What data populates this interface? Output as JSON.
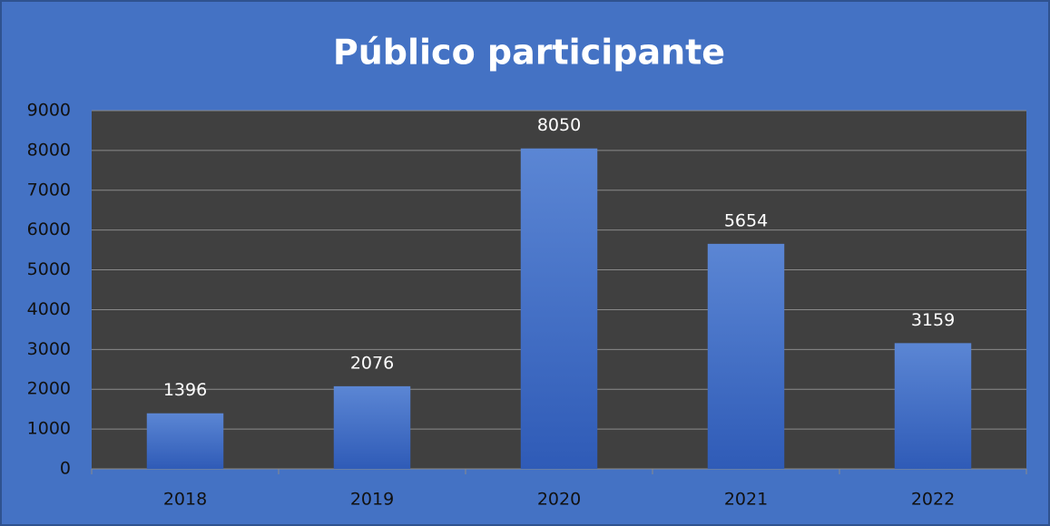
{
  "chart_data": {
    "type": "bar",
    "title": "Público participante",
    "categories": [
      "2018",
      "2019",
      "2020",
      "2021",
      "2022"
    ],
    "values": [
      1396,
      2076,
      8050,
      5654,
      3159
    ],
    "color": "#4a78cc",
    "ylim": [
      0,
      9000
    ],
    "yticks": [
      0,
      1000,
      2000,
      3000,
      4000,
      5000,
      6000,
      7000,
      8000,
      9000
    ],
    "grid": true
  }
}
